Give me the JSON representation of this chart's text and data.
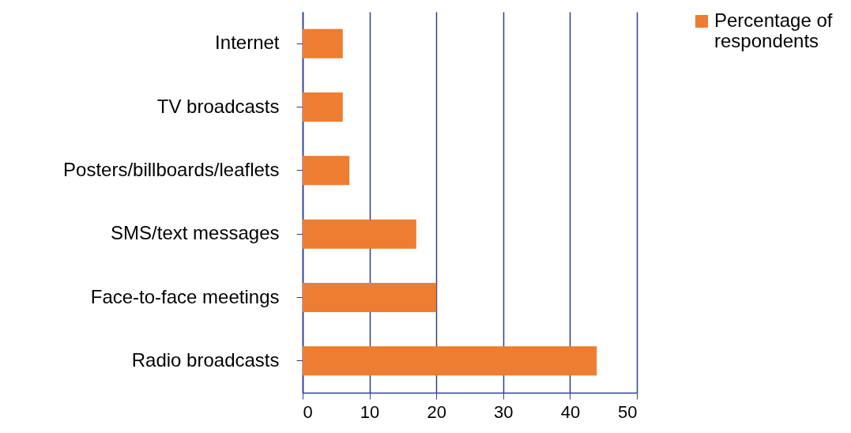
{
  "chart_data": {
    "type": "bar",
    "orientation": "horizontal",
    "categories": [
      "Internet",
      "TV broadcasts",
      "Posters/billboards/leaflets",
      "SMS/text messages",
      "Face-to-face meetings",
      "Radio broadcasts"
    ],
    "series": [
      {
        "name": "Percentage of respondents",
        "color": "#ed7d31",
        "values": [
          6,
          6,
          7,
          17,
          20,
          44
        ]
      }
    ],
    "xlim": [
      0,
      50
    ],
    "xticks": [
      0,
      10,
      20,
      30,
      40,
      50
    ],
    "grid": "x",
    "legend": "right"
  }
}
